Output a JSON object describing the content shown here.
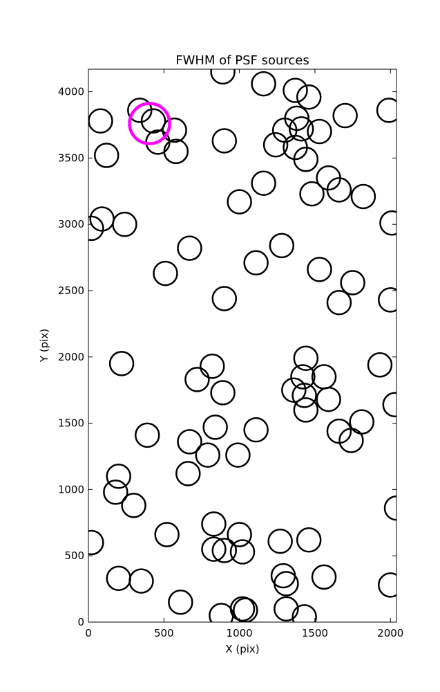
{
  "chart_data": {
    "type": "scatter",
    "title": "FWHM of PSF sources",
    "xlabel": "X (pix)",
    "ylabel": "Y (pix)",
    "xlim": [
      0,
      2040
    ],
    "ylim": [
      0,
      4170
    ],
    "xticks": [
      0,
      500,
      1000,
      1500,
      2000
    ],
    "yticks": [
      0,
      500,
      1000,
      1500,
      2000,
      2500,
      3000,
      3500,
      4000
    ],
    "grid": false,
    "marker": "open-circle",
    "marker_color": "#000000",
    "highlight_color": "#ff00ff",
    "highlight": {
      "x": 405,
      "y": 3760
    },
    "points": [
      {
        "x": 890,
        "y": 4150
      },
      {
        "x": 1160,
        "y": 4060
      },
      {
        "x": 1370,
        "y": 4010
      },
      {
        "x": 1460,
        "y": 3960
      },
      {
        "x": 1990,
        "y": 3860
      },
      {
        "x": 1700,
        "y": 3820
      },
      {
        "x": 340,
        "y": 3860
      },
      {
        "x": 80,
        "y": 3780
      },
      {
        "x": 430,
        "y": 3780
      },
      {
        "x": 570,
        "y": 3710
      },
      {
        "x": 900,
        "y": 3630
      },
      {
        "x": 460,
        "y": 3620
      },
      {
        "x": 580,
        "y": 3550
      },
      {
        "x": 120,
        "y": 3520
      },
      {
        "x": 1380,
        "y": 3800
      },
      {
        "x": 1300,
        "y": 3710
      },
      {
        "x": 1410,
        "y": 3720
      },
      {
        "x": 1530,
        "y": 3700
      },
      {
        "x": 1240,
        "y": 3600
      },
      {
        "x": 1370,
        "y": 3580
      },
      {
        "x": 1440,
        "y": 3490
      },
      {
        "x": 1590,
        "y": 3350
      },
      {
        "x": 1660,
        "y": 3260
      },
      {
        "x": 1480,
        "y": 3230
      },
      {
        "x": 1820,
        "y": 3210
      },
      {
        "x": 1160,
        "y": 3310
      },
      {
        "x": 1000,
        "y": 3170
      },
      {
        "x": 90,
        "y": 3040
      },
      {
        "x": 20,
        "y": 2970
      },
      {
        "x": 240,
        "y": 3000
      },
      {
        "x": 2010,
        "y": 3010
      },
      {
        "x": 670,
        "y": 2820
      },
      {
        "x": 1280,
        "y": 2840
      },
      {
        "x": 1110,
        "y": 2710
      },
      {
        "x": 1530,
        "y": 2660
      },
      {
        "x": 510,
        "y": 2630
      },
      {
        "x": 1750,
        "y": 2560
      },
      {
        "x": 900,
        "y": 2440
      },
      {
        "x": 1660,
        "y": 2410
      },
      {
        "x": 2000,
        "y": 2430
      },
      {
        "x": 220,
        "y": 1950
      },
      {
        "x": 820,
        "y": 1930
      },
      {
        "x": 1440,
        "y": 1990
      },
      {
        "x": 1930,
        "y": 1940
      },
      {
        "x": 720,
        "y": 1830
      },
      {
        "x": 1420,
        "y": 1850
      },
      {
        "x": 1560,
        "y": 1850
      },
      {
        "x": 890,
        "y": 1730
      },
      {
        "x": 1360,
        "y": 1750
      },
      {
        "x": 1430,
        "y": 1710
      },
      {
        "x": 1590,
        "y": 1680
      },
      {
        "x": 2030,
        "y": 1640
      },
      {
        "x": 1440,
        "y": 1600
      },
      {
        "x": 1810,
        "y": 1510
      },
      {
        "x": 840,
        "y": 1470
      },
      {
        "x": 1110,
        "y": 1450
      },
      {
        "x": 1660,
        "y": 1440
      },
      {
        "x": 1740,
        "y": 1370
      },
      {
        "x": 390,
        "y": 1410
      },
      {
        "x": 670,
        "y": 1360
      },
      {
        "x": 790,
        "y": 1260
      },
      {
        "x": 990,
        "y": 1260
      },
      {
        "x": 660,
        "y": 1120
      },
      {
        "x": 200,
        "y": 1100
      },
      {
        "x": 180,
        "y": 980
      },
      {
        "x": 300,
        "y": 880
      },
      {
        "x": 2040,
        "y": 860
      },
      {
        "x": 830,
        "y": 740
      },
      {
        "x": 1000,
        "y": 660
      },
      {
        "x": 520,
        "y": 660
      },
      {
        "x": 20,
        "y": 600
      },
      {
        "x": 1270,
        "y": 610
      },
      {
        "x": 1460,
        "y": 620
      },
      {
        "x": 830,
        "y": 550
      },
      {
        "x": 900,
        "y": 540
      },
      {
        "x": 1020,
        "y": 530
      },
      {
        "x": 200,
        "y": 330
      },
      {
        "x": 350,
        "y": 310
      },
      {
        "x": 1290,
        "y": 350
      },
      {
        "x": 1560,
        "y": 340
      },
      {
        "x": 1310,
        "y": 290
      },
      {
        "x": 2000,
        "y": 280
      },
      {
        "x": 610,
        "y": 150
      },
      {
        "x": 1310,
        "y": 100
      },
      {
        "x": 1020,
        "y": 100
      },
      {
        "x": 1040,
        "y": 90
      },
      {
        "x": 880,
        "y": 50
      },
      {
        "x": 1430,
        "y": 40
      }
    ]
  }
}
